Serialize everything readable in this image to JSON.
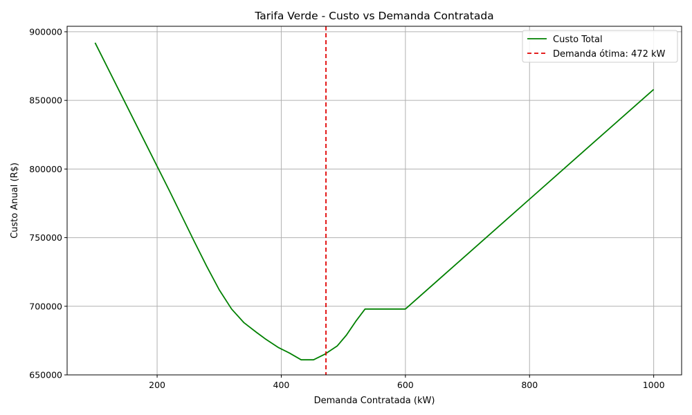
{
  "chart_data": {
    "type": "line",
    "title": "Tarifa Verde - Custo vs Demanda Contratada",
    "xlabel": "Demanda Contratada (kW)",
    "ylabel": "Custo Anual (R$)",
    "xlim": [
      55,
      1045
    ],
    "ylim": [
      650000,
      904000
    ],
    "xticks": [
      200,
      400,
      600,
      800,
      1000
    ],
    "yticks": [
      650000,
      700000,
      750000,
      800000,
      850000,
      900000
    ],
    "grid": true,
    "legend_position": "top-right",
    "series": [
      {
        "name": "Custo Total",
        "color": "#008000",
        "style": "solid",
        "x": [
          100,
          140,
          180,
          220,
          260,
          280,
          300,
          320,
          340,
          360,
          375,
          395,
          413,
          432,
          452,
          470,
          490,
          505,
          520,
          535,
          560,
          600,
          700,
          800,
          900,
          1000
        ],
        "y": [
          892000,
          856000,
          820000,
          784000,
          747000,
          729000,
          712000,
          698000,
          688000,
          681000,
          676000,
          670000,
          666000,
          661000,
          661000,
          665000,
          671000,
          679000,
          689000,
          698000,
          698000,
          698000,
          738000,
          778000,
          818000,
          858000
        ]
      }
    ],
    "vline": {
      "name": "Demanda ótima: 472 kW",
      "x": 472,
      "color": "#e00000",
      "style": "dashed"
    }
  }
}
